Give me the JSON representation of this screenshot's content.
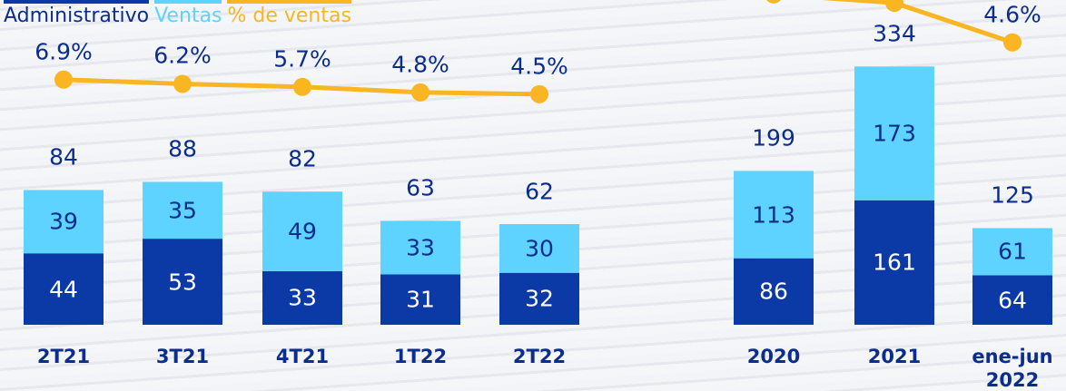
{
  "chart_data": [
    {
      "type": "bar",
      "stacked": true,
      "categories": [
        "2T21",
        "3T21",
        "4T21",
        "1T22",
        "2T22"
      ],
      "series": [
        {
          "name": "Administrativo",
          "color": "#0b3aa6",
          "values": [
            44,
            53,
            33,
            31,
            32
          ]
        },
        {
          "name": "Ventas",
          "color": "#5ed3ff",
          "values": [
            39,
            35,
            49,
            33,
            30
          ]
        },
        {
          "name": "% de ventas",
          "color": "#f9b522",
          "type": "line",
          "axis": "y2",
          "values": [
            6.9,
            6.2,
            5.7,
            4.8,
            4.5
          ],
          "value_labels": [
            "6.9%",
            "6.2%",
            "5.7%",
            "4.8%",
            "4.5%"
          ]
        }
      ],
      "totals": [
        84,
        88,
        82,
        63,
        62
      ],
      "ylim": [
        0,
        200
      ],
      "y2lim": [
        0,
        20
      ]
    },
    {
      "type": "bar",
      "stacked": true,
      "categories": [
        "2020",
        "2021",
        "ene-jun 2022"
      ],
      "series": [
        {
          "name": "Administrativo",
          "color": "#0b3aa6",
          "values": [
            86,
            161,
            64
          ]
        },
        {
          "name": "Ventas",
          "color": "#5ed3ff",
          "values": [
            113,
            173,
            61
          ]
        },
        {
          "name": "% de ventas",
          "color": "#f9b522",
          "type": "line",
          "axis": "y2",
          "values": [
            5.45,
            5.3,
            4.6
          ],
          "value_labels": [
            null,
            null,
            "4.6%"
          ]
        }
      ],
      "totals": [
        199,
        334,
        125
      ],
      "ylim": [
        0,
        420
      ],
      "y2lim": [
        3.2,
        5.35
      ]
    }
  ]
}
